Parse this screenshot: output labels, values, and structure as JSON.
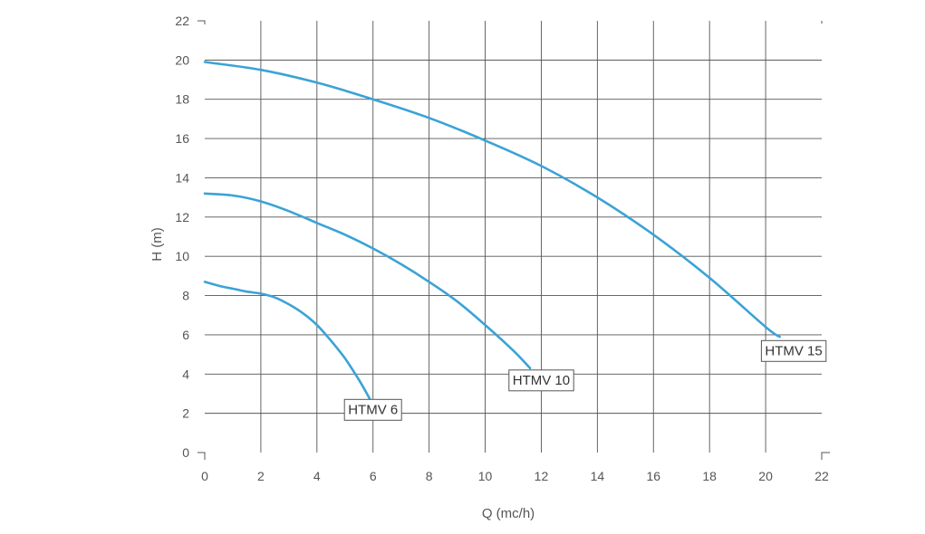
{
  "chart_data": {
    "type": "line",
    "title": "",
    "xlabel": "Q (mc/h)",
    "ylabel": "H (m)",
    "xlim": [
      0,
      22
    ],
    "ylim": [
      0,
      22
    ],
    "x_ticks": [
      "0",
      "2",
      "4",
      "6",
      "8",
      "10",
      "12",
      "14",
      "16",
      "18",
      "20",
      "22"
    ],
    "y_ticks": [
      "0",
      "2",
      "4",
      "6",
      "8",
      "10",
      "12",
      "14",
      "16",
      "18",
      "20",
      "22"
    ],
    "grid": true,
    "series": [
      {
        "name": "HTMV 6",
        "x": [
          0,
          0.5,
          1,
          1.5,
          2,
          2.5,
          3,
          3.5,
          4,
          4.5,
          5,
          5.5,
          5.9
        ],
        "y": [
          8.7,
          8.5,
          8.35,
          8.2,
          8.1,
          7.9,
          7.55,
          7.1,
          6.5,
          5.7,
          4.8,
          3.7,
          2.7
        ]
      },
      {
        "name": "HTMV 10",
        "x": [
          0,
          1,
          2,
          3,
          4,
          5,
          6,
          7,
          8,
          9,
          10,
          11,
          11.6
        ],
        "y": [
          13.2,
          13.1,
          12.8,
          12.3,
          11.7,
          11.1,
          10.4,
          9.6,
          8.7,
          7.7,
          6.5,
          5.2,
          4.3
        ]
      },
      {
        "name": "HTMV 15",
        "x": [
          0,
          2,
          4,
          6,
          8,
          10,
          12,
          14,
          16,
          18,
          20,
          20.5
        ],
        "y": [
          19.9,
          19.5,
          18.85,
          18.0,
          17.05,
          15.9,
          14.6,
          13.0,
          11.1,
          8.9,
          6.4,
          5.9
        ]
      }
    ],
    "annotations": [
      {
        "text": "HTMV 6",
        "x": 6.0,
        "y": 2.2
      },
      {
        "text": "HTMV 10",
        "x": 12.0,
        "y": 3.7
      },
      {
        "text": "HTMV 15",
        "x": 21.0,
        "y": 5.2
      }
    ]
  }
}
